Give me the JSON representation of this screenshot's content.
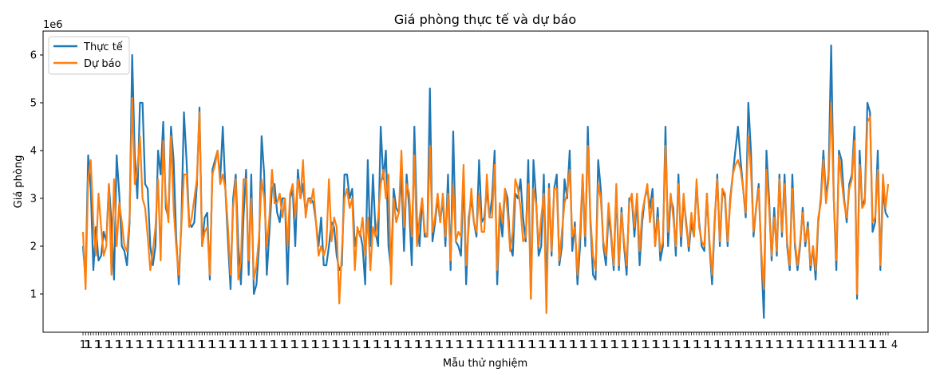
{
  "chart_data": {
    "type": "line",
    "title": "Giá phòng thực tế và dự báo",
    "xlabel": "Mẫu thử nghiệm",
    "ylabel": "Giá phòng",
    "y_offset_label": "1e6",
    "ylim": [
      0.2,
      6.5
    ],
    "yticks": [
      1,
      2,
      3,
      4,
      5,
      6
    ],
    "ytick_labels": [
      "1",
      "2",
      "3",
      "4",
      "5",
      "6"
    ],
    "legend_position": "top-left",
    "grid": false,
    "x_first_tick": "1",
    "x_last_tick": "4",
    "series": [
      {
        "name": "Thực tế",
        "color": "#1f77b4",
        "values": [
          2.0,
          1.3,
          3.9,
          3.2,
          1.5,
          2.4,
          1.7,
          1.8,
          2.3,
          2.1,
          3.3,
          2.5,
          1.3,
          3.9,
          3.1,
          2.0,
          1.9,
          1.6,
          2.5,
          6.0,
          3.9,
          3.0,
          5.0,
          5.0,
          3.3,
          3.2,
          2.0,
          1.6,
          2.0,
          4.0,
          3.5,
          4.6,
          2.8,
          2.6,
          4.5,
          3.8,
          2.2,
          1.2,
          2.5,
          4.8,
          3.8,
          2.5,
          2.4,
          2.5,
          3.3,
          4.9,
          2.0,
          2.6,
          2.7,
          1.3,
          3.6,
          3.8,
          4.0,
          3.4,
          4.5,
          3.2,
          2.1,
          1.1,
          3.0,
          3.5,
          2.0,
          1.2,
          2.6,
          3.6,
          1.4,
          3.5,
          1.0,
          1.2,
          2.0,
          4.3,
          3.5,
          1.4,
          2.3,
          3.2,
          3.3,
          2.7,
          2.5,
          3.0,
          3.0,
          1.2,
          3.0,
          3.2,
          2.0,
          3.6,
          3.0,
          3.3,
          2.7,
          3.0,
          3.0,
          2.9,
          2.5,
          2.0,
          2.6,
          1.6,
          1.6,
          2.0,
          2.5,
          2.4,
          1.8,
          1.5,
          1.6,
          3.5,
          3.5,
          3.0,
          3.2,
          2.0,
          2.3,
          2.3,
          2.0,
          1.2,
          3.8,
          2.0,
          3.5,
          2.3,
          2.0,
          4.5,
          3.4,
          4.0,
          2.0,
          1.5,
          3.2,
          2.8,
          2.7,
          3.5,
          1.9,
          3.5,
          2.8,
          1.6,
          4.5,
          2.5,
          2.0,
          3.0,
          2.2,
          2.2,
          5.3,
          2.1,
          2.5,
          3.0,
          2.5,
          3.0,
          2.0,
          3.5,
          1.5,
          4.4,
          2.1,
          2.0,
          1.8,
          3.5,
          1.2,
          2.6,
          3.0,
          2.5,
          2.2,
          3.8,
          2.5,
          2.6,
          3.2,
          2.6,
          3.0,
          4.0,
          1.2,
          2.7,
          2.2,
          3.2,
          3.0,
          2.0,
          1.8,
          3.1,
          3.0,
          3.4,
          2.6,
          2.1,
          3.8,
          0.9,
          3.8,
          3.0,
          1.8,
          2.0,
          3.5,
          1.0,
          3.3,
          1.8,
          3.2,
          3.5,
          1.6,
          2.0,
          3.4,
          3.0,
          4.0,
          1.9,
          2.5,
          1.2,
          2.0,
          3.5,
          2.0,
          4.5,
          2.5,
          1.4,
          1.3,
          3.8,
          3.2,
          2.0,
          1.6,
          2.7,
          2.2,
          1.5,
          3.2,
          1.5,
          2.8,
          2.0,
          1.4,
          3.0,
          3.0,
          2.2,
          3.0,
          1.6,
          2.5,
          3.0,
          3.2,
          2.8,
          3.2,
          2.0,
          2.8,
          1.7,
          2.0,
          4.5,
          2.0,
          3.0,
          2.8,
          1.8,
          3.5,
          2.0,
          3.0,
          2.5,
          1.9,
          2.5,
          2.2,
          3.3,
          2.5,
          2.0,
          1.9,
          3.1,
          2.0,
          1.2,
          2.5,
          3.5,
          2.0,
          3.2,
          3.0,
          2.0,
          3.0,
          3.5,
          4.0,
          4.5,
          3.8,
          3.2,
          2.6,
          5.0,
          4.0,
          2.2,
          2.8,
          3.3,
          1.8,
          0.5,
          4.0,
          3.0,
          1.7,
          2.8,
          1.8,
          3.5,
          2.2,
          3.5,
          2.0,
          1.5,
          3.5,
          2.0,
          1.5,
          2.0,
          2.8,
          2.0,
          2.5,
          1.5,
          2.0,
          1.3,
          2.5,
          3.0,
          4.0,
          3.0,
          3.5,
          6.2,
          3.0,
          1.5,
          4.0,
          3.8,
          3.0,
          2.5,
          3.3,
          3.5,
          4.5,
          0.9,
          4.0,
          2.8,
          3.0,
          5.0,
          4.8,
          2.3,
          2.5,
          4.0,
          1.5,
          3.2,
          2.7,
          2.6
        ]
      },
      {
        "name": "Dự báo",
        "color": "#ff7f0e",
        "values": [
          2.3,
          1.1,
          3.4,
          3.8,
          2.5,
          1.8,
          3.1,
          2.4,
          1.8,
          2.0,
          3.3,
          1.4,
          3.4,
          2.0,
          2.9,
          2.5,
          2.0,
          1.9,
          2.6,
          5.1,
          3.3,
          3.6,
          4.3,
          3.0,
          2.8,
          2.2,
          1.5,
          1.9,
          2.4,
          3.4,
          1.7,
          4.2,
          3.0,
          2.5,
          4.3,
          2.8,
          2.0,
          1.4,
          2.4,
          3.5,
          3.5,
          2.4,
          2.6,
          3.0,
          3.4,
          4.8,
          2.0,
          2.3,
          2.4,
          1.4,
          3.5,
          3.7,
          4.0,
          3.3,
          3.5,
          3.2,
          2.4,
          1.4,
          2.8,
          3.4,
          1.3,
          1.7,
          3.4,
          3.4,
          1.7,
          3.0,
          1.3,
          1.6,
          2.2,
          3.4,
          3.0,
          2.0,
          2.6,
          3.6,
          2.9,
          2.9,
          3.1,
          2.6,
          3.0,
          2.0,
          3.1,
          3.3,
          2.6,
          3.4,
          3.0,
          3.8,
          2.6,
          3.0,
          2.9,
          3.2,
          2.5,
          1.8,
          2.0,
          1.8,
          2.0,
          3.4,
          2.1,
          2.6,
          2.4,
          0.8,
          1.9,
          3.0,
          3.2,
          2.8,
          3.0,
          1.5,
          2.4,
          2.2,
          2.6,
          1.8,
          2.6,
          1.5,
          2.4,
          2.2,
          2.6,
          3.3,
          3.6,
          3.0,
          3.5,
          1.2,
          3.0,
          2.5,
          2.7,
          4.0,
          2.4,
          3.3,
          3.1,
          2.2,
          3.9,
          2.0,
          2.6,
          3.0,
          2.3,
          2.2,
          4.1,
          2.3,
          2.6,
          3.1,
          2.5,
          3.1,
          2.2,
          3.1,
          1.7,
          3.3,
          2.1,
          2.3,
          2.2,
          3.7,
          1.6,
          2.4,
          3.2,
          2.5,
          2.3,
          3.1,
          2.3,
          2.3,
          3.5,
          2.6,
          2.6,
          3.7,
          1.5,
          2.9,
          2.5,
          3.2,
          2.7,
          1.9,
          2.3,
          3.4,
          3.2,
          2.8,
          2.1,
          2.2,
          3.3,
          0.9,
          3.2,
          2.9,
          2.0,
          2.6,
          3.1,
          0.6,
          3.2,
          1.9,
          3.2,
          3.2,
          1.7,
          2.3,
          2.9,
          3.1,
          3.6,
          2.2,
          2.4,
          1.4,
          2.3,
          3.5,
          2.2,
          4.1,
          2.6,
          1.8,
          1.5,
          3.3,
          3.0,
          2.1,
          1.8,
          2.9,
          2.3,
          1.6,
          3.3,
          1.6,
          2.7,
          2.1,
          1.6,
          2.9,
          3.1,
          2.4,
          3.1,
          1.9,
          2.7,
          3.0,
          3.3,
          2.5,
          3.0,
          2.0,
          2.6,
          1.9,
          2.1,
          4.1,
          2.3,
          3.1,
          2.6,
          2.0,
          3.3,
          2.2,
          3.1,
          2.4,
          2.0,
          2.7,
          2.2,
          3.4,
          2.4,
          2.1,
          2.0,
          3.1,
          2.1,
          1.4,
          2.6,
          3.4,
          2.1,
          3.2,
          3.1,
          2.1,
          2.9,
          3.5,
          3.7,
          3.8,
          3.6,
          3.2,
          2.7,
          4.3,
          3.6,
          2.3,
          2.8,
          3.2,
          1.9,
          1.1,
          3.6,
          2.8,
          1.8,
          2.6,
          1.9,
          3.4,
          2.3,
          3.3,
          2.1,
          1.6,
          3.2,
          2.1,
          1.6,
          2.1,
          2.7,
          2.1,
          2.4,
          1.6,
          2.0,
          1.5,
          2.6,
          2.9,
          3.8,
          2.9,
          3.4,
          5.0,
          3.0,
          1.7,
          3.9,
          3.4,
          2.9,
          2.6,
          3.2,
          3.4,
          4.2,
          1.0,
          3.7,
          2.8,
          2.9,
          4.6,
          4.7,
          2.5,
          2.6,
          3.6,
          1.6,
          3.5,
          2.8,
          3.3
        ]
      }
    ]
  }
}
